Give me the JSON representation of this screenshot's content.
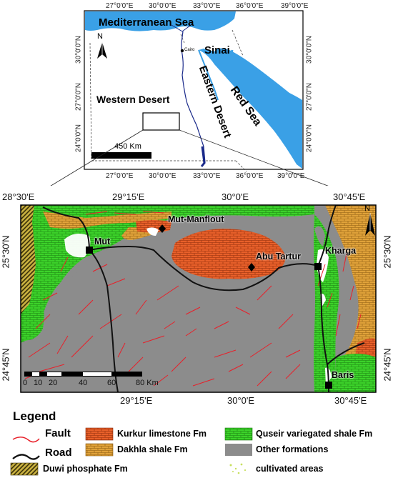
{
  "inset_map": {
    "top_lon_labels": [
      "27°0'0\"E",
      "30°0'0\"E",
      "33°0'0\"E",
      "36°0'0\"E",
      "39°0'0\"E"
    ],
    "bottom_lon_labels": [
      "27°0'0\"E",
      "30°0'0\"E",
      "33°0'0\"E",
      "36°0'0\"E",
      "39°0'0\"E"
    ],
    "left_lat_labels": [
      "30°0'0\"N",
      "27°0'0\"N",
      "24°0'0\"N"
    ],
    "right_lat_labels": [
      "30°0'0\"N",
      "27°0'0\"N",
      "24°0'0\"N"
    ],
    "places": {
      "mediterranean": "Mediterranean Sea",
      "sinai": "Sinai",
      "cairo": "Cairo",
      "western_desert": "Western Desert",
      "eastern_desert": "Eastern Desert",
      "red_sea": "Red Sea"
    },
    "scale_label": "450 Km",
    "north": "N"
  },
  "main_map": {
    "top_lon_labels": [
      "28°30'E",
      "29°15'E",
      "30°0'E",
      "30°45'E"
    ],
    "bottom_lon_labels": [
      "29°15'E",
      "30°0'E",
      "30°45'E"
    ],
    "left_lat_labels": [
      "25°30'N",
      "24°45'N"
    ],
    "right_lat_labels": [
      "25°30'N",
      "24°45'N"
    ],
    "sites": {
      "mut_manflout": "Mut-Manflout",
      "mut": "Mut",
      "abu_tartur": "Abu Tartur",
      "kharga": "Kharga",
      "baris": "Baris"
    },
    "scale_ticks": [
      "0",
      "10",
      "20",
      "40",
      "60",
      "80 Km"
    ],
    "north": "N"
  },
  "legend": {
    "title": "Legend",
    "items": [
      {
        "label": "Fault",
        "kind": "line",
        "color": "#e8202a"
      },
      {
        "label": "Road",
        "kind": "line",
        "color": "#111111"
      },
      {
        "label": "Kurkur limestone Fm",
        "kind": "brick",
        "color": "#e8602a"
      },
      {
        "label": "Dakhla shale Fm",
        "kind": "brick",
        "color": "#e0a23a"
      },
      {
        "label": "Duwi phosphate Fm",
        "kind": "hatch",
        "color": "#7a6a10"
      },
      {
        "label": "Quseir variegated shale Fm",
        "kind": "brick",
        "color": "#3cd22a"
      },
      {
        "label": "Other formations",
        "kind": "fill",
        "color": "#8c8c8c"
      },
      {
        "label": "cultivated areas",
        "kind": "dots",
        "color": "#c8e060"
      }
    ]
  },
  "colors": {
    "sea": "#3aa0e6",
    "other_formations": "#8c8c8c",
    "kurkur": "#e8602a",
    "dakhla": "#e0a23a",
    "quseir": "#3cd22a",
    "duwi": "#7a6a10",
    "fault": "#e8202a",
    "road": "#111111"
  }
}
